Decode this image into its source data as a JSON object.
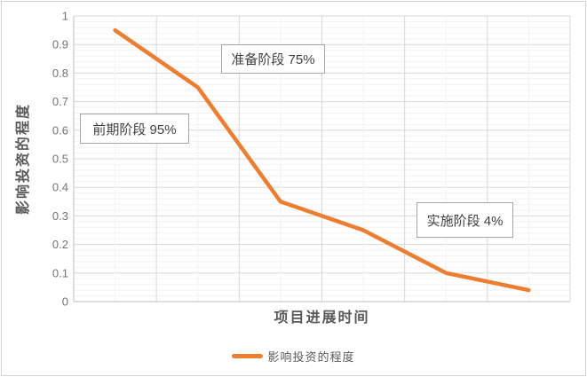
{
  "chart_data": {
    "type": "line",
    "x_axis_title": "项目进展时间",
    "y_axis_title": "影响投资的程度",
    "categories": [
      "",
      "",
      "",
      "",
      "",
      ""
    ],
    "series": [
      {
        "name": "影响投资的程度",
        "values": [
          0.95,
          0.75,
          0.35,
          0.25,
          0.1,
          0.04
        ],
        "color": "#ED7D31"
      }
    ],
    "ylim": [
      0,
      1
    ],
    "y_major_step": 0.1,
    "y_minor_step": 0.02,
    "y_ticks": [
      "1",
      "0.9",
      "0.8",
      "0.7",
      "0.6",
      "0.5",
      "0.4",
      "0.3",
      "0.2",
      "0.1",
      "0"
    ],
    "x_major_divisions": 6,
    "grid": "major and minor gridlines, horizontal and vertical",
    "legend_position": "bottom",
    "annotations": [
      {
        "text": "前期阶段 95%"
      },
      {
        "text": "准备阶段 75%"
      },
      {
        "text": "实施阶段 4%"
      }
    ]
  },
  "legend": {
    "label": "影响投资的程度"
  },
  "colors": {
    "series": "#ED7D31",
    "major_grid": "#D9D9D9",
    "minor_grid": "#F2F2F2",
    "axis_line": "#BFBFBF",
    "tick_label": "#737373",
    "title_text": "#595959",
    "annotation_text": "#404040",
    "annotation_border": "#A6A6A6",
    "frame_border": "#D2D2D2"
  }
}
